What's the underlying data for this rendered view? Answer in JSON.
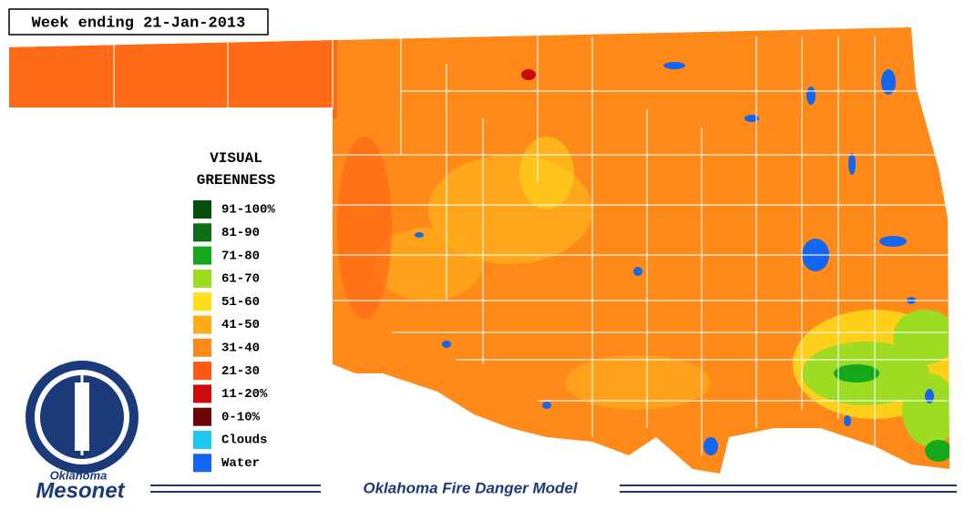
{
  "header": {
    "title": "Week ending 21-Jan-2013"
  },
  "legend": {
    "title_lines": [
      "VISUAL",
      "GREENNESS"
    ],
    "items": [
      {
        "label": "91-100%",
        "color": "#034f0b"
      },
      {
        "label": "81-90",
        "color": "#0b6e14"
      },
      {
        "label": "71-80",
        "color": "#16a81a"
      },
      {
        "label": "61-70",
        "color": "#9ddc22"
      },
      {
        "label": "51-60",
        "color": "#ffe01a"
      },
      {
        "label": "41-50",
        "color": "#ffac1a"
      },
      {
        "label": "31-40",
        "color": "#ff8a1a"
      },
      {
        "label": "21-30",
        "color": "#ff5a14"
      },
      {
        "label": "11-20%",
        "color": "#cc0a0a"
      },
      {
        "label": "0-10%",
        "color": "#6e0505"
      },
      {
        "label": "Clouds",
        "color": "#20c8f0"
      },
      {
        "label": "Water",
        "color": "#1466f0"
      }
    ]
  },
  "logo": {
    "line1": "Oklahoma",
    "line2": "Mesonet"
  },
  "footer": {
    "title": "Oklahoma Fire Danger Model"
  }
}
